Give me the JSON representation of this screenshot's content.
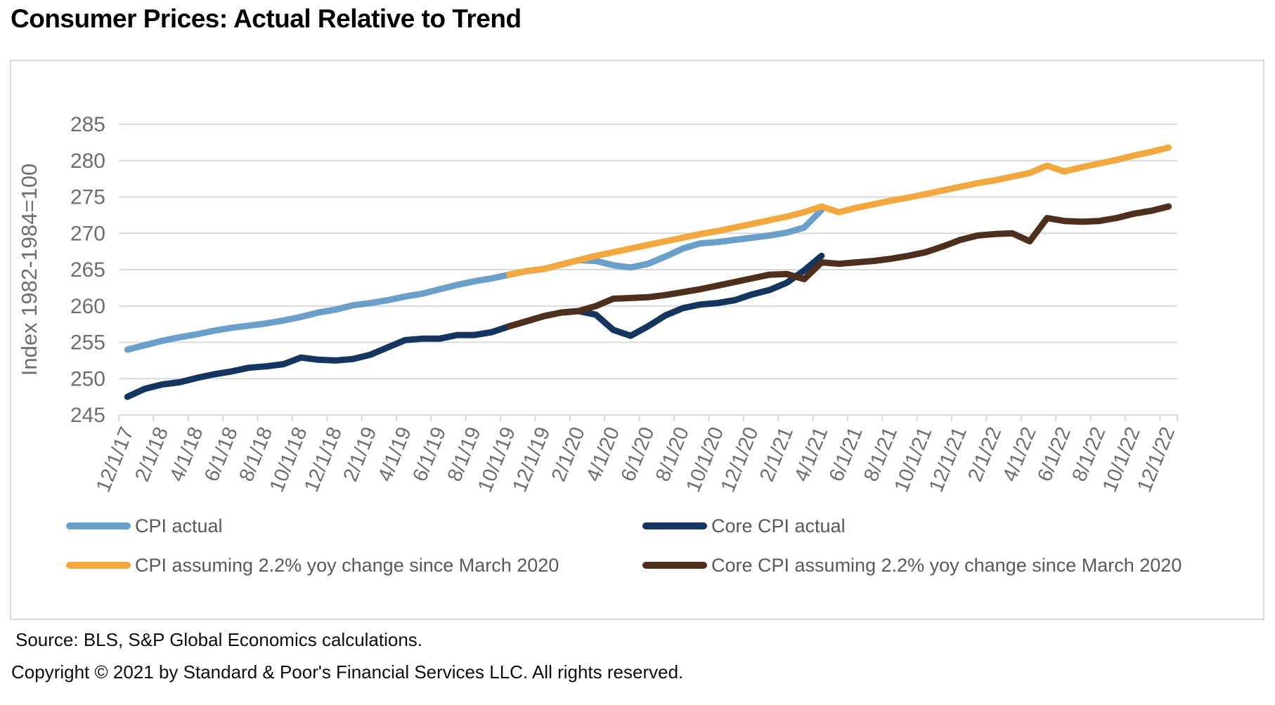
{
  "title": "Consumer Prices: Actual Relative to Trend",
  "footer": {
    "source": "Source: BLS, S&P Global Economics calculations.",
    "copyright": "Copyright © 2021 by Standard & Poor's Financial Services LLC. All rights reserved."
  },
  "colors": {
    "cpi_actual": "#699fc8",
    "core_cpi_actual": "#14355f",
    "cpi_trend": "#f2a83e",
    "core_cpi_trend": "#4e2f1e",
    "gridline": "#d9d9d9",
    "axis_text": "#6e6e6e",
    "legend_text": "#595959",
    "panel_border": "#d9d9d9"
  },
  "chart_data": {
    "type": "line",
    "title": "Consumer Prices: Actual Relative to Trend",
    "xlabel": "",
    "ylabel": "Index 1982-1984=100",
    "ylim": [
      245,
      285
    ],
    "ytick_step": 5,
    "grid": true,
    "legend_position": "bottom",
    "x_tick_labels": [
      "12/1/17",
      "2/1/18",
      "4/1/18",
      "6/1/18",
      "8/1/18",
      "10/1/18",
      "12/1/18",
      "2/1/19",
      "4/1/19",
      "6/1/19",
      "8/1/19",
      "10/1/19",
      "12/1/19",
      "2/1/20",
      "4/1/20",
      "6/1/20",
      "8/1/20",
      "10/1/20",
      "12/1/20",
      "2/1/21",
      "4/1/21",
      "6/1/21",
      "8/1/21",
      "10/1/21",
      "12/1/21",
      "2/1/22",
      "4/1/22",
      "6/1/22",
      "8/1/22",
      "10/1/22",
      "12/1/22"
    ],
    "months_total": 61,
    "series": [
      {
        "name": "CPI actual",
        "color": "#699fc8",
        "start_month_index": 0,
        "values": [
          254.0,
          254.6,
          255.2,
          255.7,
          256.1,
          256.6,
          257.0,
          257.3,
          257.6,
          258.0,
          258.5,
          259.1,
          259.5,
          260.1,
          260.4,
          260.8,
          261.3,
          261.7,
          262.3,
          262.9,
          263.4,
          263.8,
          264.3,
          264.8,
          265.1,
          265.7,
          266.3,
          266.2,
          265.6,
          265.3,
          265.8,
          266.8,
          267.9,
          268.6,
          268.8,
          269.1,
          269.4,
          269.7,
          270.1,
          270.8,
          273.2
        ]
      },
      {
        "name": "Core CPI actual",
        "color": "#14355f",
        "start_month_index": 0,
        "values": [
          247.5,
          248.6,
          249.2,
          249.5,
          250.1,
          250.6,
          251.0,
          251.5,
          251.7,
          252.0,
          252.9,
          252.6,
          252.5,
          252.7,
          253.3,
          254.3,
          255.3,
          255.5,
          255.5,
          256.0,
          256.0,
          256.4,
          257.2,
          257.9,
          258.6,
          259.1,
          259.3,
          258.8,
          256.7,
          255.9,
          257.2,
          258.7,
          259.7,
          260.2,
          260.4,
          260.8,
          261.6,
          262.2,
          263.2,
          264.9,
          266.9
        ]
      },
      {
        "name": "CPI assuming 2.2% yoy change since March 2020",
        "color": "#f2a83e",
        "start_month_index": 22,
        "values": [
          264.3,
          264.8,
          265.1,
          265.7,
          266.3,
          266.9,
          267.4,
          267.9,
          268.4,
          268.9,
          269.4,
          269.9,
          270.3,
          270.8,
          271.3,
          271.8,
          272.3,
          272.9,
          273.7,
          272.9,
          273.5,
          274.0,
          274.5,
          274.9,
          275.4,
          275.9,
          276.4,
          276.9,
          277.3,
          277.8,
          278.3,
          279.3,
          278.5,
          279.1,
          279.6,
          280.1,
          280.7,
          281.2,
          281.8
        ]
      },
      {
        "name": "Core CPI assuming 2.2% yoy change since March 2020",
        "color": "#4e2f1e",
        "start_month_index": 22,
        "values": [
          257.2,
          257.9,
          258.6,
          259.1,
          259.3,
          260.0,
          261.0,
          261.1,
          261.2,
          261.5,
          261.9,
          262.3,
          262.8,
          263.3,
          263.8,
          264.3,
          264.4,
          263.7,
          266.0,
          265.8,
          266.0,
          266.2,
          266.5,
          266.9,
          267.4,
          268.2,
          269.1,
          269.7,
          269.9,
          270.0,
          268.9,
          272.1,
          271.7,
          271.6,
          271.7,
          272.1,
          272.7,
          273.1,
          273.7
        ]
      }
    ]
  }
}
